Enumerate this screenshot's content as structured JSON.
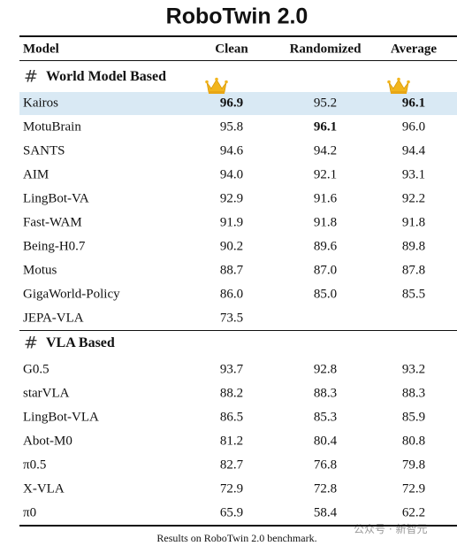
{
  "title": "RoboTwin 2.0",
  "columns": [
    "Model",
    "Clean",
    "Randomized",
    "Average"
  ],
  "sections": [
    {
      "marker": "#",
      "name": "World Model Based",
      "rows": [
        {
          "cells": [
            "Kairos",
            "96.9",
            "95.2",
            "96.1"
          ],
          "bold": [
            1,
            3
          ],
          "crown": [
            1,
            3
          ],
          "highlight": true
        },
        {
          "cells": [
            "MotuBrain",
            "95.8",
            "96.1",
            "96.0"
          ],
          "bold": [
            2
          ]
        },
        {
          "cells": [
            "SANTS",
            "94.6",
            "94.2",
            "94.4"
          ]
        },
        {
          "cells": [
            "AIM",
            "94.0",
            "92.1",
            "93.1"
          ]
        },
        {
          "cells": [
            "LingBot-VA",
            "92.9",
            "91.6",
            "92.2"
          ]
        },
        {
          "cells": [
            "Fast-WAM",
            "91.9",
            "91.8",
            "91.8"
          ]
        },
        {
          "cells": [
            "Being-H0.7",
            "90.2",
            "89.6",
            "89.8"
          ]
        },
        {
          "cells": [
            "Motus",
            "88.7",
            "87.0",
            "87.8"
          ]
        },
        {
          "cells": [
            "GigaWorld-Policy",
            "86.0",
            "85.0",
            "85.5"
          ]
        },
        {
          "cells": [
            "JEPA-VLA",
            "73.5"
          ]
        }
      ]
    },
    {
      "marker": "#",
      "name": "VLA Based",
      "rows": [
        {
          "cells": [
            "G0.5",
            "93.7",
            "92.8",
            "93.2"
          ]
        },
        {
          "cells": [
            "starVLA",
            "88.2",
            "88.3",
            "88.3"
          ]
        },
        {
          "cells": [
            "LingBot-VLA",
            "86.5",
            "85.3",
            "85.9"
          ]
        },
        {
          "cells": [
            "Abot-M0",
            "81.2",
            "80.4",
            "80.8"
          ]
        },
        {
          "cells": [
            "π0.5",
            "82.7",
            "76.8",
            "79.8"
          ]
        },
        {
          "cells": [
            "X-VLA",
            "72.9",
            "72.8",
            "72.9"
          ]
        },
        {
          "cells": [
            "π0",
            "65.9",
            "58.4",
            "62.2"
          ]
        }
      ]
    }
  ],
  "caption": "Results on RoboTwin 2.0 benchmark.",
  "watermark": "公众号 · 新智元"
}
